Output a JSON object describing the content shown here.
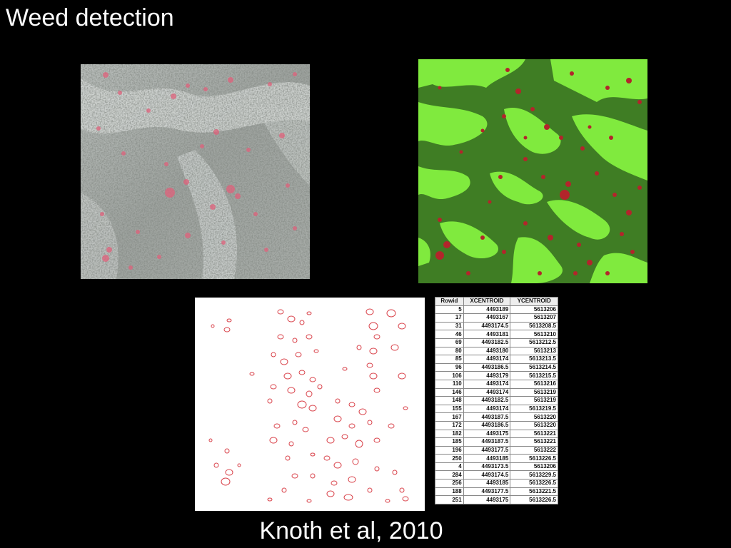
{
  "slide": {
    "title": "Weed detection",
    "caption": "Knoth et al, 2010"
  },
  "images": {
    "aerial": "aerial-field-photo",
    "classified": "classified-weed-map",
    "outlines": "weed-patch-outlines"
  },
  "colors": {
    "background": "#000000",
    "crop_dark": "#3f7d24",
    "crop_light": "#80ea3e",
    "weed": "#b3252b",
    "outline": "#d9424a"
  },
  "table": {
    "headers": [
      "Rowid",
      "XCENTROID",
      "YCENTROID"
    ],
    "rows": [
      [
        "5",
        "4493189",
        "5613206"
      ],
      [
        "17",
        "4493167",
        "5613207"
      ],
      [
        "31",
        "4493174.5",
        "5613208.5"
      ],
      [
        "46",
        "4493181",
        "5613210"
      ],
      [
        "69",
        "4493182.5",
        "5613212.5"
      ],
      [
        "80",
        "4493180",
        "5613213"
      ],
      [
        "85",
        "4493174",
        "5613213.5"
      ],
      [
        "96",
        "4493186.5",
        "5613214.5"
      ],
      [
        "106",
        "4493179",
        "5613215.5"
      ],
      [
        "110",
        "4493174",
        "5613216"
      ],
      [
        "146",
        "4493174",
        "5613219"
      ],
      [
        "148",
        "4493182.5",
        "5613219"
      ],
      [
        "155",
        "4493174",
        "5613219.5"
      ],
      [
        "167",
        "4493187.5",
        "5613220"
      ],
      [
        "172",
        "4493186.5",
        "5613220"
      ],
      [
        "182",
        "4493175",
        "5613221"
      ],
      [
        "185",
        "4493187.5",
        "5613221"
      ],
      [
        "196",
        "4493177.5",
        "5613222"
      ],
      [
        "250",
        "4493185",
        "5613226.5"
      ],
      [
        "4",
        "4493173.5",
        "5613206"
      ],
      [
        "284",
        "4493174.5",
        "5613229.5"
      ],
      [
        "256",
        "4493185",
        "5613226.5"
      ],
      [
        "188",
        "4493177.5",
        "5613221.5"
      ],
      [
        "251",
        "4493175",
        "5613226.5"
      ]
    ]
  }
}
